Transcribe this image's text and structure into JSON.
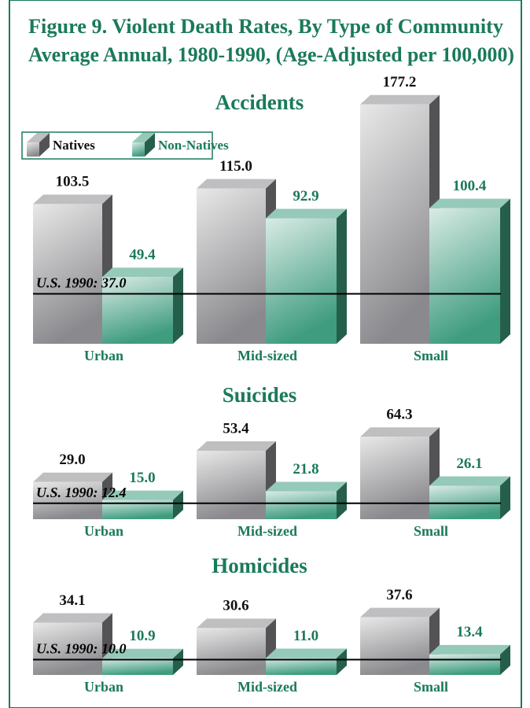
{
  "title": "Figure 9. Violent Death Rates, By Type of Community",
  "subtitle": "Average Annual, 1980-1990, (Age-Adjusted per 100,000)",
  "chart_data": [
    {
      "type": "bar",
      "title": "Accidents",
      "categories": [
        "Urban",
        "Mid-sized",
        "Small"
      ],
      "series": [
        {
          "name": "Natives",
          "color": "#8a8a8e",
          "values": [
            103.5,
            115.0,
            177.2
          ],
          "value_labels": [
            "103.5",
            "115.0",
            "177.2"
          ]
        },
        {
          "name": "Non-Natives",
          "color": "#3f9c7f",
          "values": [
            49.4,
            92.9,
            100.4
          ],
          "value_labels": [
            "49.4",
            "92.9",
            "100.4"
          ]
        }
      ],
      "reference_line": {
        "value": 37.0,
        "label": "U.S. 1990: 37.0"
      },
      "ylim": [
        0,
        180
      ],
      "legend": "top-left"
    },
    {
      "type": "bar",
      "title": "Suicides",
      "categories": [
        "Urban",
        "Mid-sized",
        "Small"
      ],
      "series": [
        {
          "color": "#8a8a8e",
          "values": [
            29.0,
            53.4,
            64.3
          ],
          "value_labels": [
            "29.0",
            "53.4",
            "64.3"
          ]
        },
        {
          "color": "#3f9c7f",
          "values": [
            15.0,
            21.8,
            26.1
          ],
          "value_labels": [
            "15.0",
            "21.8",
            "26.1"
          ]
        }
      ],
      "reference_line": {
        "value": 12.4,
        "label": "U.S. 1990: 12.4"
      },
      "ylim": [
        0,
        70
      ]
    },
    {
      "type": "bar",
      "title": "Homicides",
      "categories": [
        "Urban",
        "Mid-sized",
        "Small"
      ],
      "series": [
        {
          "color": "#8a8a8e",
          "values": [
            34.1,
            30.6,
            37.6
          ],
          "value_labels": [
            "34.1",
            "30.6",
            "37.6"
          ]
        },
        {
          "color": "#3f9c7f",
          "values": [
            10.9,
            11.0,
            13.4
          ],
          "value_labels": [
            "10.9",
            "11.0",
            "13.4"
          ]
        }
      ],
      "reference_line": {
        "value": 10.0,
        "label": "U.S. 1990: 10.0"
      },
      "ylim": [
        0,
        40
      ]
    }
  ]
}
